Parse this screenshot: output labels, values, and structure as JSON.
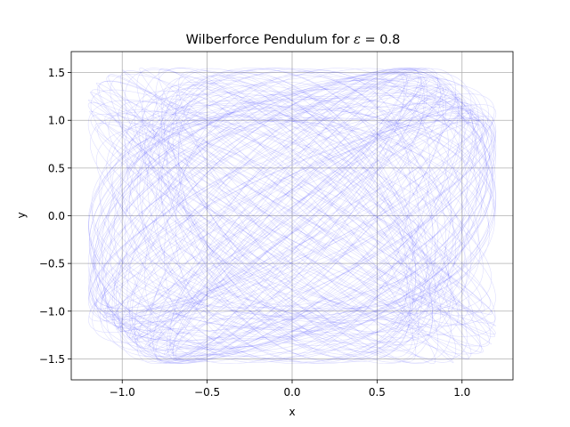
{
  "chart_data": {
    "type": "line",
    "title": "Wilberforce Pendulum for ",
    "title_math_symbol": "ε",
    "title_math_value": " = 0.8",
    "xlabel": "x",
    "ylabel": "y",
    "xlim": [
      -1.3,
      1.3
    ],
    "ylim": [
      -1.72,
      1.72
    ],
    "xticks": [
      -1.0,
      -0.5,
      0.0,
      0.5,
      1.0
    ],
    "xtick_labels": [
      "−1.0",
      "−0.5",
      "0.0",
      "0.5",
      "1.0"
    ],
    "yticks": [
      -1.5,
      -1.0,
      -0.5,
      0.0,
      0.5,
      1.0,
      1.5
    ],
    "ytick_labels": [
      "−1.5",
      "−1.0",
      "−0.5",
      "0.0",
      "0.5",
      "1.0",
      "1.5"
    ],
    "grid": true,
    "line_color": "#0000ff",
    "epsilon": 0.8,
    "trajectory": {
      "x_amplitude": 1.2,
      "y_amplitude": 1.55,
      "x_frequency": 1.0,
      "y_frequency": 1.0,
      "beat_frequency": 0.035,
      "t_end": 900
    }
  }
}
